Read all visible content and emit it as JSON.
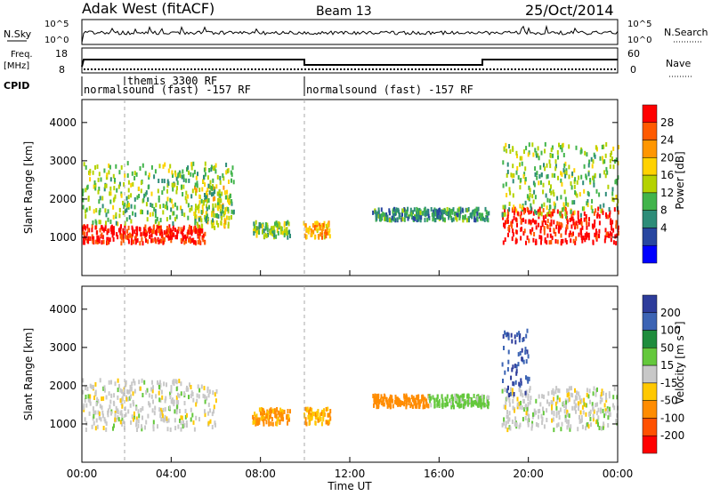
{
  "header": {
    "station": "Adak West (fitACF)",
    "beam": "Beam 13",
    "date": "25/Oct/2014"
  },
  "noise_panel": {
    "left_label": "N.Sky",
    "right_label": "N.Search",
    "ticks_left": [
      "10^5",
      "10^0"
    ],
    "ticks_right": [
      "10^5",
      "10^0"
    ]
  },
  "freq_panel": {
    "left_label_line1": "Freq.",
    "left_label_line2": "[MHz]",
    "right_label": "Nave",
    "ticks_left": [
      "18",
      "8"
    ],
    "ticks_right": [
      "60",
      "0"
    ]
  },
  "cpid_panel": {
    "label": "CPID",
    "programs": [
      {
        "name": "normalsound (fast) -157 RF",
        "start_hour": 0
      },
      {
        "name": "themis 3300 RF",
        "start_hour": 2
      },
      {
        "name": "normalsound (fast) -157 RF",
        "start_hour": 10
      }
    ]
  },
  "power_colorbar": {
    "label": "Power [dB]",
    "ticks": [
      "28",
      "24",
      "20",
      "16",
      "12",
      "8",
      "4"
    ],
    "colors": [
      "#ff0000",
      "#ff5a00",
      "#ff9600",
      "#ffd200",
      "#b4d200",
      "#41b44b",
      "#2d8c78",
      "#2846a0",
      "#0000ff"
    ]
  },
  "velocity_colorbar": {
    "label": "Velocity [m s⁻¹]",
    "ticks": [
      "200",
      "100",
      "50",
      "15",
      "-15",
      "-50",
      "-100",
      "-200"
    ],
    "colors": [
      "#2d3c9b",
      "#3c64b4",
      "#1e8c3c",
      "#64c83c",
      "#c8c8c8",
      "#ffc800",
      "#ff8c00",
      "#ff5000",
      "#ff0000"
    ]
  },
  "chart_data": [
    {
      "type": "heatmap",
      "name": "power",
      "ylabel": "Slant Range [km]",
      "ylim": [
        0,
        4600
      ],
      "xlim": [
        0,
        24
      ],
      "yticks": [
        "1000",
        "2000",
        "3000",
        "4000"
      ],
      "scatter_regions": [
        {
          "t0": 0.0,
          "t1": 5.5,
          "r0": 900,
          "r1": 1350,
          "dB": 28
        },
        {
          "t0": 5.0,
          "t1": 6.6,
          "r0": 1300,
          "r1": 2400,
          "dB": 16
        },
        {
          "t0": 0.0,
          "t1": 6.8,
          "r0": 1400,
          "r1": 3000,
          "dB": 12
        },
        {
          "t0": 7.6,
          "t1": 9.3,
          "r0": 1050,
          "r1": 1450,
          "dB": 12
        },
        {
          "t0": 9.9,
          "t1": 11.1,
          "r0": 1050,
          "r1": 1450,
          "dB": 20
        },
        {
          "t0": 13.0,
          "t1": 18.2,
          "r0": 1500,
          "r1": 1800,
          "dB": 8
        },
        {
          "t0": 18.8,
          "t1": 24.0,
          "r0": 900,
          "r1": 1800,
          "dB": 28
        },
        {
          "t0": 18.8,
          "t1": 24.0,
          "r0": 1600,
          "r1": 3500,
          "dB": 12
        }
      ]
    },
    {
      "type": "heatmap",
      "name": "velocity",
      "xlabel": "Time UT",
      "ylabel": "Slant Range [km]",
      "ylim": [
        0,
        4600
      ],
      "xlim": [
        0,
        24
      ],
      "yticks": [
        "1000",
        "2000",
        "3000",
        "4000"
      ],
      "xticks": [
        "00:00",
        "04:00",
        "08:00",
        "12:00",
        "16:00",
        "20:00",
        "00:00"
      ],
      "scatter_regions": [
        {
          "t0": 0.0,
          "t1": 6.0,
          "r0": 900,
          "r1": 2200,
          "v": 0
        },
        {
          "t0": 7.6,
          "t1": 9.3,
          "r0": 1050,
          "r1": 1450,
          "v": -60
        },
        {
          "t0": 9.9,
          "t1": 11.1,
          "r0": 1050,
          "r1": 1450,
          "v": -40
        },
        {
          "t0": 13.0,
          "t1": 15.5,
          "r0": 1500,
          "r1": 1800,
          "v": -80
        },
        {
          "t0": 15.5,
          "t1": 18.2,
          "r0": 1500,
          "r1": 1800,
          "v": 30
        },
        {
          "t0": 18.8,
          "t1": 24.0,
          "r0": 900,
          "r1": 2000,
          "v": 0
        },
        {
          "t0": 18.8,
          "t1": 20.0,
          "r0": 1800,
          "r1": 3500,
          "v": 200
        }
      ]
    }
  ]
}
